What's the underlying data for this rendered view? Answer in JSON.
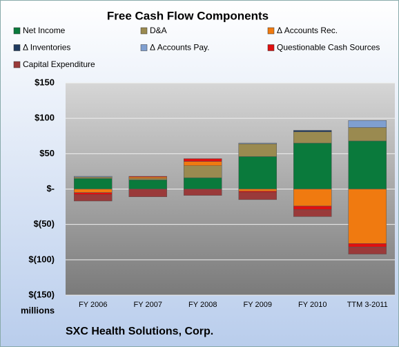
{
  "chart_data": {
    "type": "stacked-bar",
    "title": "Free Cash Flow Components",
    "subtitle": "SXC Health Solutions, Corp.",
    "y_unit_label": "millions",
    "categories": [
      "FY 2006",
      "FY 2007",
      "FY 2008",
      "FY 2009",
      "FY 2010",
      "TTM 3-2011"
    ],
    "series": [
      {
        "name": "Net Income",
        "color": "#0a7a3c",
        "values": [
          15,
          13,
          16,
          46,
          65,
          68
        ]
      },
      {
        "name": "D&A",
        "color": "#9a8a50",
        "values": [
          2,
          2,
          17,
          18,
          16,
          19
        ]
      },
      {
        "name": "Δ Accounts Rec.",
        "color": "#f07a10",
        "values": [
          -5,
          2,
          6,
          -3,
          -24,
          -77
        ]
      },
      {
        "name": "Δ Inventories",
        "color": "#1f3a5f",
        "values": [
          0,
          0,
          0,
          0,
          2,
          0
        ]
      },
      {
        "name": "Δ Accounts Pay.",
        "color": "#7f9fd0",
        "values": [
          1,
          0,
          0,
          1,
          0,
          10
        ]
      },
      {
        "name": "Questionable Cash Sources",
        "color": "#e01010",
        "values": [
          -3,
          1,
          4,
          -2,
          -5,
          -5
        ]
      },
      {
        "name": "Capital Expenditure",
        "color": "#9a3a3a",
        "values": [
          -9,
          -11,
          -9,
          -10,
          -10,
          -10
        ]
      }
    ],
    "ylim": [
      -150,
      150
    ],
    "yticks": [
      {
        "value": -150,
        "label": "$(150)"
      },
      {
        "value": -100,
        "label": "$(100)"
      },
      {
        "value": -50,
        "label": "$(50)"
      },
      {
        "value": 0,
        "label": "$-"
      },
      {
        "value": 50,
        "label": "$50"
      },
      {
        "value": 100,
        "label": "$100"
      },
      {
        "value": 150,
        "label": "$150"
      }
    ],
    "grid": true
  }
}
